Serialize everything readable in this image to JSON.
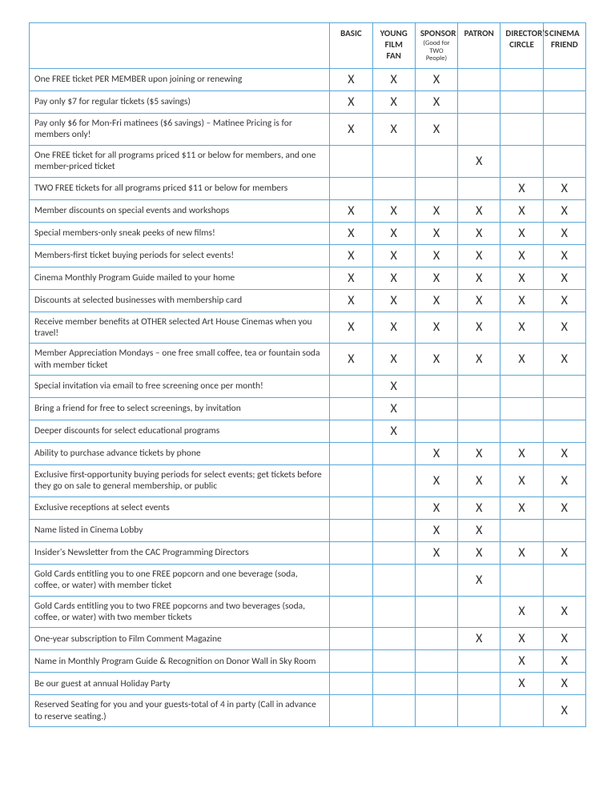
{
  "tiers": [
    {
      "label": "BASIC",
      "subhead": ""
    },
    {
      "label": "YOUNG FILM FAN",
      "subhead": ""
    },
    {
      "label": "SPONSOR",
      "subhead": "(Good for TWO People)"
    },
    {
      "label": "PATRON",
      "subhead": ""
    },
    {
      "label": "DIRECTOR'S CIRCLE",
      "subhead": ""
    },
    {
      "label": "CINEMA FRIEND",
      "subhead": ""
    }
  ],
  "benefits": [
    {
      "text": "One FREE ticket PER MEMBER upon joining or renewing",
      "marks": [
        true,
        true,
        true,
        false,
        false,
        false
      ]
    },
    {
      "text": "Pay only $7 for regular tickets ($5 savings)",
      "marks": [
        true,
        true,
        true,
        false,
        false,
        false
      ]
    },
    {
      "text": "Pay only $6 for Mon-Fri matinees ($6 savings) – Matinee Pricing is for members only!",
      "marks": [
        true,
        true,
        true,
        false,
        false,
        false
      ]
    },
    {
      "text": "One FREE ticket for all programs priced $11 or below for members, and one member-priced ticket",
      "marks": [
        false,
        false,
        false,
        true,
        false,
        false
      ]
    },
    {
      "text": "TWO FREE tickets for all programs priced $11 or below for members",
      "marks": [
        false,
        false,
        false,
        false,
        true,
        true
      ]
    },
    {
      "text": "Member discounts on special events and workshops",
      "marks": [
        true,
        true,
        true,
        true,
        true,
        true
      ]
    },
    {
      "text": "Special members-only sneak peeks of new films!",
      "marks": [
        true,
        true,
        true,
        true,
        true,
        true
      ]
    },
    {
      "text": "Members-first ticket buying periods for select events!",
      "marks": [
        true,
        true,
        true,
        true,
        true,
        true
      ]
    },
    {
      "text": "Cinema Monthly Program Guide mailed to your home",
      "marks": [
        true,
        true,
        true,
        true,
        true,
        true
      ]
    },
    {
      "text": "Discounts at selected businesses with membership card",
      "marks": [
        true,
        true,
        true,
        true,
        true,
        true
      ]
    },
    {
      "text": "Receive member benefits at OTHER selected Art House Cinemas when you travel!",
      "marks": [
        true,
        true,
        true,
        true,
        true,
        true
      ]
    },
    {
      "text": "Member Appreciation Mondays – one free small coffee, tea or fountain soda with member ticket",
      "marks": [
        true,
        true,
        true,
        true,
        true,
        true
      ]
    },
    {
      "text": "Special invitation via email to free screening once per month!",
      "marks": [
        false,
        true,
        false,
        false,
        false,
        false
      ]
    },
    {
      "text": "Bring a friend for free to select screenings, by invitation",
      "marks": [
        false,
        true,
        false,
        false,
        false,
        false
      ]
    },
    {
      "text": "Deeper discounts for select educational programs",
      "marks": [
        false,
        true,
        false,
        false,
        false,
        false
      ]
    },
    {
      "text": "Ability to purchase advance tickets by phone",
      "marks": [
        false,
        false,
        true,
        true,
        true,
        true
      ]
    },
    {
      "text": "Exclusive first-opportunity buying periods for select events; get tickets before they go on sale to general membership, or public",
      "marks": [
        false,
        false,
        true,
        true,
        true,
        true
      ]
    },
    {
      "text": "Exclusive receptions at select events",
      "marks": [
        false,
        false,
        true,
        true,
        true,
        true
      ]
    },
    {
      "text": "Name listed in Cinema Lobby",
      "marks": [
        false,
        false,
        true,
        true,
        false,
        false
      ]
    },
    {
      "text": "Insider's Newsletter from the CAC Programming Directors",
      "marks": [
        false,
        false,
        true,
        true,
        true,
        true
      ]
    },
    {
      "text": "Gold Cards entitling you to one FREE popcorn and one beverage (soda, coffee, or water) with member ticket",
      "marks": [
        false,
        false,
        false,
        true,
        false,
        false
      ]
    },
    {
      "text": "Gold Cards entitling you to two FREE popcorns and two beverages (soda, coffee, or water) with two member tickets",
      "marks": [
        false,
        false,
        false,
        false,
        true,
        true
      ]
    },
    {
      "text": "One-year subscription to Film Comment Magazine",
      "marks": [
        false,
        false,
        false,
        true,
        true,
        true
      ]
    },
    {
      "text": "Name in Monthly Program Guide & Recognition on Donor Wall in Sky Room",
      "marks": [
        false,
        false,
        false,
        false,
        true,
        true
      ]
    },
    {
      "text": "Be our guest at annual Holiday Party",
      "marks": [
        false,
        false,
        false,
        false,
        true,
        true
      ]
    },
    {
      "text": "Reserved Seating for you and your guests-total of 4 in party (Call in advance to reserve seating.)",
      "marks": [
        false,
        false,
        false,
        false,
        false,
        true
      ]
    }
  ],
  "style": {
    "border_color": "#5aa7d6",
    "check_glyph": "X"
  }
}
